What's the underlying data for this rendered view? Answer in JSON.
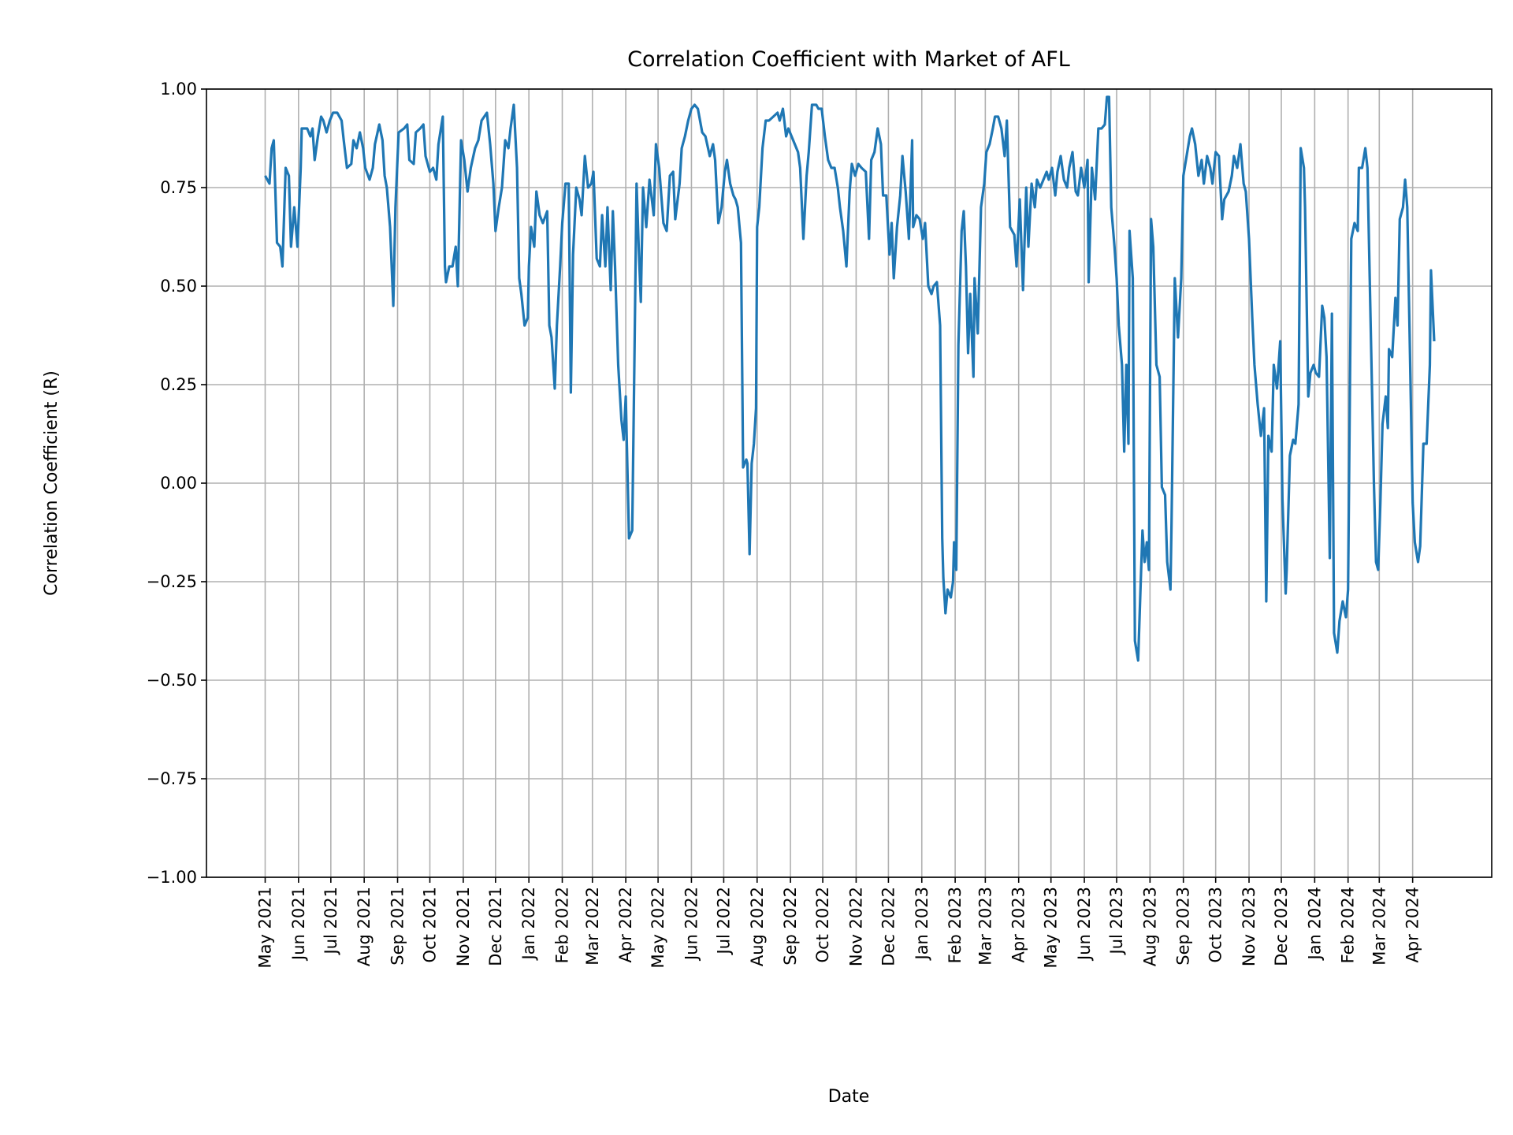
{
  "chart_data": {
    "type": "line",
    "title": "Correlation Coefficient with Market of AFL",
    "xlabel": "Date",
    "ylabel": "Correlation Coefficient (R)",
    "ylim": [
      -1.0,
      1.0
    ],
    "grid": true,
    "line_color": "#1f77b4",
    "x_tick_labels": [
      "May 2021",
      "Jun 2021",
      "Jul 2021",
      "Aug 2021",
      "Sep 2021",
      "Oct 2021",
      "Nov 2021",
      "Dec 2021",
      "Jan 2022",
      "Feb 2022",
      "Mar 2022",
      "Apr 2022",
      "May 2022",
      "Jun 2022",
      "Jul 2022",
      "Aug 2022",
      "Sep 2022",
      "Oct 2022",
      "Nov 2022",
      "Dec 2022",
      "Jan 2023",
      "Feb 2023",
      "Mar 2023",
      "Apr 2023",
      "May 2023",
      "Jun 2023",
      "Jul 2023",
      "Aug 2023",
      "Sep 2023",
      "Oct 2023",
      "Nov 2023",
      "Dec 2023",
      "Jan 2024",
      "Feb 2024",
      "Mar 2024",
      "Apr 2024"
    ],
    "y_tick_labels": [
      "−1.00",
      "−0.75",
      "−0.50",
      "−0.25",
      "0.00",
      "0.25",
      "0.50",
      "0.75",
      "1.00"
    ],
    "y_tick_values": [
      -1.0,
      -0.75,
      -0.5,
      -0.25,
      0.0,
      0.25,
      0.5,
      0.75,
      1.0
    ],
    "series": [
      {
        "x": [
          "2021-05-01",
          "2021-05-05",
          "2021-05-07",
          "2021-05-09",
          "2021-05-12",
          "2021-05-15",
          "2021-05-17",
          "2021-05-20",
          "2021-05-23",
          "2021-05-25",
          "2021-05-28",
          "2021-05-31",
          "2021-06-03",
          "2021-06-04",
          "2021-06-09",
          "2021-06-12",
          "2021-06-14",
          "2021-06-16",
          "2021-06-19",
          "2021-06-22",
          "2021-06-24",
          "2021-06-27",
          "2021-06-30",
          "2021-07-03",
          "2021-07-07",
          "2021-07-11",
          "2021-07-13",
          "2021-07-16",
          "2021-07-20",
          "2021-07-22",
          "2021-07-25",
          "2021-07-28",
          "2021-07-31",
          "2021-08-02",
          "2021-08-06",
          "2021-08-09",
          "2021-08-11",
          "2021-08-15",
          "2021-08-18",
          "2021-08-20",
          "2021-08-22",
          "2021-08-25",
          "2021-08-28",
          "2021-08-30",
          "2021-09-02",
          "2021-09-07",
          "2021-09-10",
          "2021-09-12",
          "2021-09-16",
          "2021-09-18",
          "2021-09-22",
          "2021-09-25",
          "2021-09-27",
          "2021-10-01",
          "2021-10-04",
          "2021-10-07",
          "2021-10-09",
          "2021-10-13",
          "2021-10-15",
          "2021-10-16",
          "2021-10-19",
          "2021-10-22",
          "2021-10-25",
          "2021-10-27",
          "2021-10-30",
          "2021-11-02",
          "2021-11-05",
          "2021-11-08",
          "2021-11-12",
          "2021-11-15",
          "2021-11-18",
          "2021-11-23",
          "2021-11-26",
          "2021-11-29",
          "2021-12-01",
          "2021-12-04",
          "2021-12-07",
          "2021-12-10",
          "2021-12-13",
          "2021-12-15",
          "2021-12-18",
          "2021-12-21",
          "2021-12-23",
          "2021-12-25",
          "2021-12-28",
          "2021-12-31",
          "2022-01-01",
          "2022-01-03",
          "2022-01-06",
          "2022-01-08",
          "2022-01-11",
          "2022-01-14",
          "2022-01-18",
          "2022-01-20",
          "2022-01-22",
          "2022-01-25",
          "2022-01-27",
          "2022-01-30",
          "2022-02-01",
          "2022-02-04",
          "2022-02-07",
          "2022-02-09",
          "2022-02-11",
          "2022-02-14",
          "2022-02-17",
          "2022-02-19",
          "2022-02-22",
          "2022-02-25",
          "2022-02-28",
          "2022-03-02",
          "2022-03-05",
          "2022-03-08",
          "2022-03-10",
          "2022-03-13",
          "2022-03-15",
          "2022-03-18",
          "2022-03-20",
          "2022-03-22",
          "2022-03-25",
          "2022-03-28",
          "2022-03-30",
          "2022-04-01",
          "2022-04-04",
          "2022-04-07",
          "2022-04-09",
          "2022-04-11",
          "2022-04-13",
          "2022-04-15",
          "2022-04-17",
          "2022-04-20",
          "2022-04-23",
          "2022-04-27",
          "2022-04-29",
          "2022-05-02",
          "2022-05-06",
          "2022-05-09",
          "2022-05-12",
          "2022-05-15",
          "2022-05-17",
          "2022-05-21",
          "2022-05-23",
          "2022-05-26",
          "2022-05-29",
          "2022-06-01",
          "2022-06-04",
          "2022-06-07",
          "2022-06-11",
          "2022-06-14",
          "2022-06-18",
          "2022-06-21",
          "2022-06-23",
          "2022-06-26",
          "2022-06-29",
          "2022-07-02",
          "2022-07-04",
          "2022-07-07",
          "2022-07-10",
          "2022-07-12",
          "2022-07-14",
          "2022-07-17",
          "2022-07-19",
          "2022-07-22",
          "2022-07-23",
          "2022-07-25",
          "2022-07-27",
          "2022-07-29",
          "2022-07-31",
          "2022-08-01",
          "2022-08-03",
          "2022-08-06",
          "2022-08-09",
          "2022-08-12",
          "2022-08-16",
          "2022-08-20",
          "2022-08-22",
          "2022-08-25",
          "2022-08-28",
          "2022-08-30",
          "2022-09-02",
          "2022-09-05",
          "2022-09-08",
          "2022-09-10",
          "2022-09-13",
          "2022-09-16",
          "2022-09-18",
          "2022-09-21",
          "2022-09-25",
          "2022-09-27",
          "2022-09-30",
          "2022-10-03",
          "2022-10-06",
          "2022-10-09",
          "2022-10-12",
          "2022-10-15",
          "2022-10-17",
          "2022-10-20",
          "2022-10-23",
          "2022-10-26",
          "2022-10-28",
          "2022-10-31",
          "2022-11-03",
          "2022-11-06",
          "2022-11-10",
          "2022-11-13",
          "2022-11-15",
          "2022-11-18",
          "2022-11-21",
          "2022-11-24",
          "2022-11-26",
          "2022-11-29",
          "2022-12-02",
          "2022-12-04",
          "2022-12-06",
          "2022-12-09",
          "2022-12-12",
          "2022-12-14",
          "2022-12-17",
          "2022-12-20",
          "2022-12-23",
          "2022-12-24",
          "2022-12-27",
          "2022-12-30",
          "2023-01-02",
          "2023-01-04",
          "2023-01-07",
          "2023-01-10",
          "2023-01-12",
          "2023-01-15",
          "2023-01-18",
          "2023-01-20",
          "2023-01-21",
          "2023-01-23",
          "2023-01-25",
          "2023-01-28",
          "2023-01-30",
          "2023-01-31",
          "2023-02-02",
          "2023-02-04",
          "2023-02-07",
          "2023-02-09",
          "2023-02-11",
          "2023-02-13",
          "2023-02-15",
          "2023-02-18",
          "2023-02-19",
          "2023-02-22",
          "2023-02-25",
          "2023-02-28",
          "2023-03-02",
          "2023-03-05",
          "2023-03-08",
          "2023-03-10",
          "2023-03-13",
          "2023-03-16",
          "2023-03-19",
          "2023-03-21",
          "2023-03-24",
          "2023-03-28",
          "2023-03-30",
          "2023-04-02",
          "2023-04-05",
          "2023-04-08",
          "2023-04-10",
          "2023-04-13",
          "2023-04-16",
          "2023-04-18",
          "2023-04-21",
          "2023-04-24",
          "2023-04-27",
          "2023-04-29",
          "2023-05-02",
          "2023-05-05",
          "2023-05-07",
          "2023-05-10",
          "2023-05-13",
          "2023-05-16",
          "2023-05-18",
          "2023-05-21",
          "2023-05-24",
          "2023-05-26",
          "2023-05-29",
          "2023-06-01",
          "2023-06-04",
          "2023-06-05",
          "2023-06-08",
          "2023-06-11",
          "2023-06-14",
          "2023-06-17",
          "2023-06-20",
          "2023-06-22",
          "2023-06-24",
          "2023-06-26",
          "2023-06-29",
          "2023-07-01",
          "2023-07-03",
          "2023-07-06",
          "2023-07-08",
          "2023-07-10",
          "2023-07-12",
          "2023-07-13",
          "2023-07-16",
          "2023-07-18",
          "2023-07-21",
          "2023-07-23",
          "2023-07-25",
          "2023-07-27",
          "2023-07-29",
          "2023-07-31",
          "2023-08-02",
          "2023-08-04",
          "2023-08-07",
          "2023-08-10",
          "2023-08-12",
          "2023-08-15",
          "2023-08-17",
          "2023-08-20",
          "2023-08-21",
          "2023-08-24",
          "2023-08-27",
          "2023-08-30",
          "2023-09-01",
          "2023-09-04",
          "2023-09-07",
          "2023-09-09",
          "2023-09-12",
          "2023-09-15",
          "2023-09-18",
          "2023-09-20",
          "2023-09-23",
          "2023-09-26",
          "2023-09-28",
          "2023-10-01",
          "2023-10-04",
          "2023-10-07",
          "2023-10-09",
          "2023-10-13",
          "2023-10-16",
          "2023-10-18",
          "2023-10-21",
          "2023-10-24",
          "2023-10-27",
          "2023-10-29",
          "2023-11-01",
          "2023-11-04",
          "2023-11-06",
          "2023-11-09",
          "2023-11-12",
          "2023-11-15",
          "2023-11-17",
          "2023-11-19",
          "2023-11-22",
          "2023-11-24",
          "2023-11-27",
          "2023-11-30",
          "2023-12-02",
          "2023-12-05",
          "2023-12-06",
          "2023-12-09",
          "2023-12-12",
          "2023-12-14",
          "2023-12-17",
          "2023-12-19",
          "2023-12-22",
          "2023-12-23",
          "2023-12-26",
          "2023-12-28",
          "2023-12-31",
          "2024-01-02",
          "2024-01-05",
          "2024-01-08",
          "2024-01-10",
          "2024-01-12",
          "2024-01-15",
          "2024-01-17",
          "2024-01-19",
          "2024-01-22",
          "2024-01-24",
          "2024-01-27",
          "2024-01-30",
          "2024-02-01",
          "2024-02-04",
          "2024-02-07",
          "2024-02-10",
          "2024-02-11",
          "2024-02-14",
          "2024-02-17",
          "2024-02-19",
          "2024-02-22",
          "2024-02-25",
          "2024-02-27",
          "2024-02-29",
          "2024-03-02",
          "2024-03-04",
          "2024-03-07",
          "2024-03-09",
          "2024-03-10",
          "2024-03-13",
          "2024-03-16",
          "2024-03-18",
          "2024-03-20",
          "2024-03-23",
          "2024-03-25",
          "2024-03-27",
          "2024-03-29",
          "2024-04-01",
          "2024-04-03",
          "2024-04-06",
          "2024-04-08",
          "2024-04-11",
          "2024-04-14",
          "2024-04-17",
          "2024-04-18",
          "2024-04-21"
        ],
        "y": [
          0.78,
          0.76,
          0.85,
          0.87,
          0.61,
          0.6,
          0.55,
          0.8,
          0.78,
          0.6,
          0.7,
          0.6,
          0.8,
          0.9,
          0.9,
          0.88,
          0.9,
          0.82,
          0.88,
          0.93,
          0.92,
          0.89,
          0.92,
          0.94,
          0.94,
          0.92,
          0.87,
          0.8,
          0.81,
          0.87,
          0.85,
          0.89,
          0.85,
          0.8,
          0.77,
          0.8,
          0.86,
          0.91,
          0.87,
          0.78,
          0.75,
          0.65,
          0.45,
          0.7,
          0.89,
          0.9,
          0.91,
          0.82,
          0.81,
          0.89,
          0.9,
          0.91,
          0.83,
          0.79,
          0.8,
          0.77,
          0.86,
          0.93,
          0.55,
          0.51,
          0.55,
          0.55,
          0.6,
          0.5,
          0.87,
          0.82,
          0.74,
          0.8,
          0.85,
          0.87,
          0.92,
          0.94,
          0.86,
          0.76,
          0.64,
          0.7,
          0.75,
          0.87,
          0.85,
          0.9,
          0.96,
          0.8,
          0.52,
          0.48,
          0.4,
          0.42,
          0.55,
          0.65,
          0.6,
          0.74,
          0.68,
          0.66,
          0.69,
          0.4,
          0.37,
          0.24,
          0.4,
          0.55,
          0.66,
          0.76,
          0.76,
          0.23,
          0.58,
          0.75,
          0.72,
          0.68,
          0.83,
          0.75,
          0.76,
          0.79,
          0.57,
          0.55,
          0.68,
          0.55,
          0.7,
          0.49,
          0.69,
          0.55,
          0.3,
          0.16,
          0.11,
          0.22,
          -0.14,
          -0.12,
          0.3,
          0.76,
          0.6,
          0.46,
          0.75,
          0.65,
          0.77,
          0.68,
          0.86,
          0.8,
          0.66,
          0.64,
          0.78,
          0.79,
          0.67,
          0.76,
          0.85,
          0.88,
          0.92,
          0.95,
          0.96,
          0.95,
          0.89,
          0.88,
          0.83,
          0.86,
          0.82,
          0.66,
          0.7,
          0.79,
          0.82,
          0.76,
          0.73,
          0.72,
          0.7,
          0.61,
          0.04,
          0.06,
          0.05,
          -0.18,
          0.05,
          0.1,
          0.19,
          0.65,
          0.7,
          0.85,
          0.92,
          0.92,
          0.93,
          0.94,
          0.92,
          0.95,
          0.88,
          0.9,
          0.88,
          0.86,
          0.84,
          0.8,
          0.62,
          0.78,
          0.84,
          0.96,
          0.96,
          0.95,
          0.95,
          0.88,
          0.82,
          0.8,
          0.8,
          0.75,
          0.7,
          0.64,
          0.55,
          0.74,
          0.81,
          0.78,
          0.81,
          0.8,
          0.79,
          0.62,
          0.82,
          0.84,
          0.9,
          0.86,
          0.73,
          0.73,
          0.58,
          0.66,
          0.52,
          0.65,
          0.73,
          0.83,
          0.74,
          0.62,
          0.87,
          0.65,
          0.68,
          0.67,
          0.62,
          0.66,
          0.5,
          0.48,
          0.5,
          0.51,
          0.4,
          -0.14,
          -0.24,
          -0.33,
          -0.27,
          -0.29,
          -0.25,
          -0.15,
          -0.22,
          0.35,
          0.64,
          0.69,
          0.55,
          0.33,
          0.48,
          0.27,
          0.52,
          0.38,
          0.7,
          0.76,
          0.84,
          0.86,
          0.9,
          0.93,
          0.93,
          0.9,
          0.83,
          0.92,
          0.65,
          0.63,
          0.55,
          0.72,
          0.49,
          0.75,
          0.6,
          0.76,
          0.7,
          0.77,
          0.75,
          0.77,
          0.79,
          0.77,
          0.8,
          0.73,
          0.79,
          0.83,
          0.77,
          0.75,
          0.8,
          0.84,
          0.74,
          0.73,
          0.8,
          0.75,
          0.82,
          0.51,
          0.8,
          0.72,
          0.9,
          0.9,
          0.91,
          0.98,
          0.98,
          0.7,
          0.6,
          0.52,
          0.4,
          0.3,
          0.08,
          0.3,
          0.1,
          0.64,
          0.52,
          -0.4,
          -0.45,
          -0.28,
          -0.12,
          -0.2,
          -0.15,
          -0.22,
          0.67,
          0.6,
          0.3,
          0.27,
          -0.01,
          -0.03,
          -0.2,
          -0.27,
          -0.1,
          0.52,
          0.37,
          0.52,
          0.78,
          0.83,
          0.88,
          0.9,
          0.86,
          0.78,
          0.82,
          0.76,
          0.83,
          0.8,
          0.76,
          0.84,
          0.83,
          0.67,
          0.72,
          0.74,
          0.78,
          0.83,
          0.8,
          0.86,
          0.76,
          0.74,
          0.62,
          0.42,
          0.3,
          0.2,
          0.12,
          0.19,
          -0.3,
          0.12,
          0.08,
          0.3,
          0.24,
          0.36,
          -0.04,
          -0.28,
          -0.22,
          0.07,
          0.11,
          0.1,
          0.2,
          0.85,
          0.8,
          0.7,
          0.22,
          0.28,
          0.3,
          0.28,
          0.27,
          0.45,
          0.42,
          0.32,
          -0.19,
          0.43,
          -0.38,
          -0.43,
          -0.35,
          -0.3,
          -0.34,
          -0.27,
          0.62,
          0.66,
          0.64,
          0.8,
          0.8,
          0.85,
          0.8,
          0.4,
          0.0,
          -0.2,
          -0.22,
          -0.05,
          0.15,
          0.22,
          0.14,
          0.34,
          0.32,
          0.47,
          0.4,
          0.67,
          0.7,
          0.77,
          0.7,
          0.4,
          -0.05,
          -0.15,
          -0.2,
          -0.16,
          0.1,
          0.1,
          0.3,
          0.54,
          0.36
        ]
      }
    ]
  }
}
